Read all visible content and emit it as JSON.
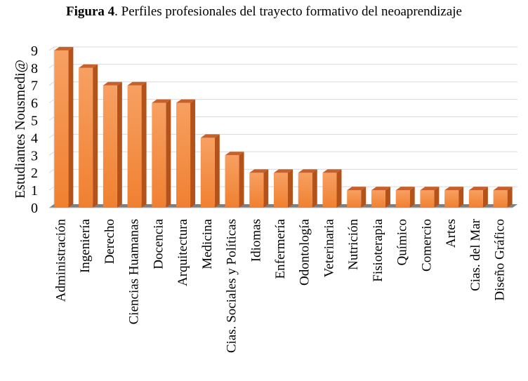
{
  "figure": {
    "label": "Figura 4",
    "caption": ". Perfiles profesionales del trayecto formativo del neoaprendizaje"
  },
  "colors": {
    "bar_front": "#f28a3e",
    "bar_front_light": "#f59a55",
    "bar_side": "#b4521a",
    "bar_top": "#c7602a",
    "floor": "#7f7f7f",
    "grid": "#d9d9d9"
  },
  "chart_data": {
    "type": "bar",
    "ylabel": "Estudiantes Nousmedi@",
    "xlabel": "",
    "ylim": [
      0,
      9
    ],
    "yticks": [
      0,
      1,
      2,
      3,
      4,
      5,
      6,
      7,
      8,
      9
    ],
    "grid": true,
    "categories": [
      "Administración",
      "Ingeniería",
      "Derecho",
      "Ciencias Huamanas",
      "Docencia",
      "Arquitectura",
      "Medicina",
      "Cias. Sociales y Políticas",
      "Idiomas",
      "Enfermería",
      "Odontología",
      "Veterinaria",
      "Nutrición",
      "Fisioterapia",
      "Químico",
      "Comercio",
      "Artes",
      "Cias. del Mar",
      "Diseño Gráfico"
    ],
    "values": [
      9,
      8,
      7,
      7,
      6,
      6,
      4,
      3,
      2,
      2,
      2,
      2,
      1,
      1,
      1,
      1,
      1,
      1,
      1
    ]
  }
}
